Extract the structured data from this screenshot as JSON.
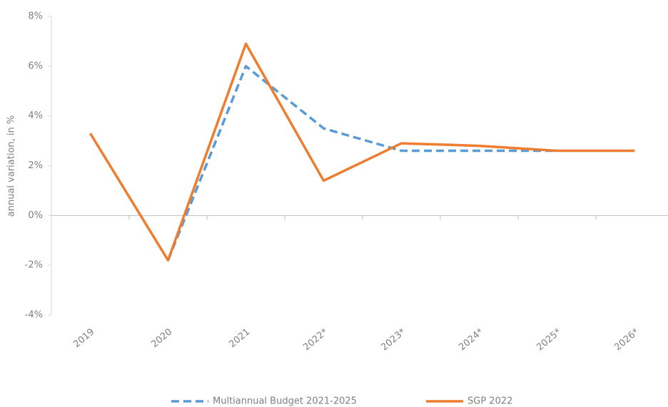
{
  "chart_data": {
    "type": "line",
    "y_label": "annual variation, in %",
    "categories": [
      "2019",
      "2020",
      "2021",
      "2022*",
      "2023*",
      "2024*",
      "2025*",
      "2026*"
    ],
    "series": [
      {
        "name": "Multiannual Budget 2021-2025",
        "color": "#5b9bd5",
        "dashed": true,
        "values": [
          null,
          -1.8,
          6.0,
          3.5,
          2.6,
          2.6,
          2.6,
          null
        ]
      },
      {
        "name": "SGP 2022",
        "color": "#ed7d31",
        "dashed": false,
        "values": [
          3.3,
          -1.8,
          6.9,
          1.4,
          2.9,
          2.8,
          2.6,
          2.6
        ]
      }
    ],
    "ylim": [
      -4,
      8
    ],
    "yticks": [
      {
        "value": -4,
        "label": "-4%"
      },
      {
        "value": -2,
        "label": "-2%"
      },
      {
        "value": 0,
        "label": "0%"
      },
      {
        "value": 2,
        "label": "2%"
      },
      {
        "value": 4,
        "label": "4%"
      },
      {
        "value": 6,
        "label": "6%"
      },
      {
        "value": 8,
        "label": "8%"
      }
    ],
    "grid": false,
    "legend": "bottom"
  }
}
